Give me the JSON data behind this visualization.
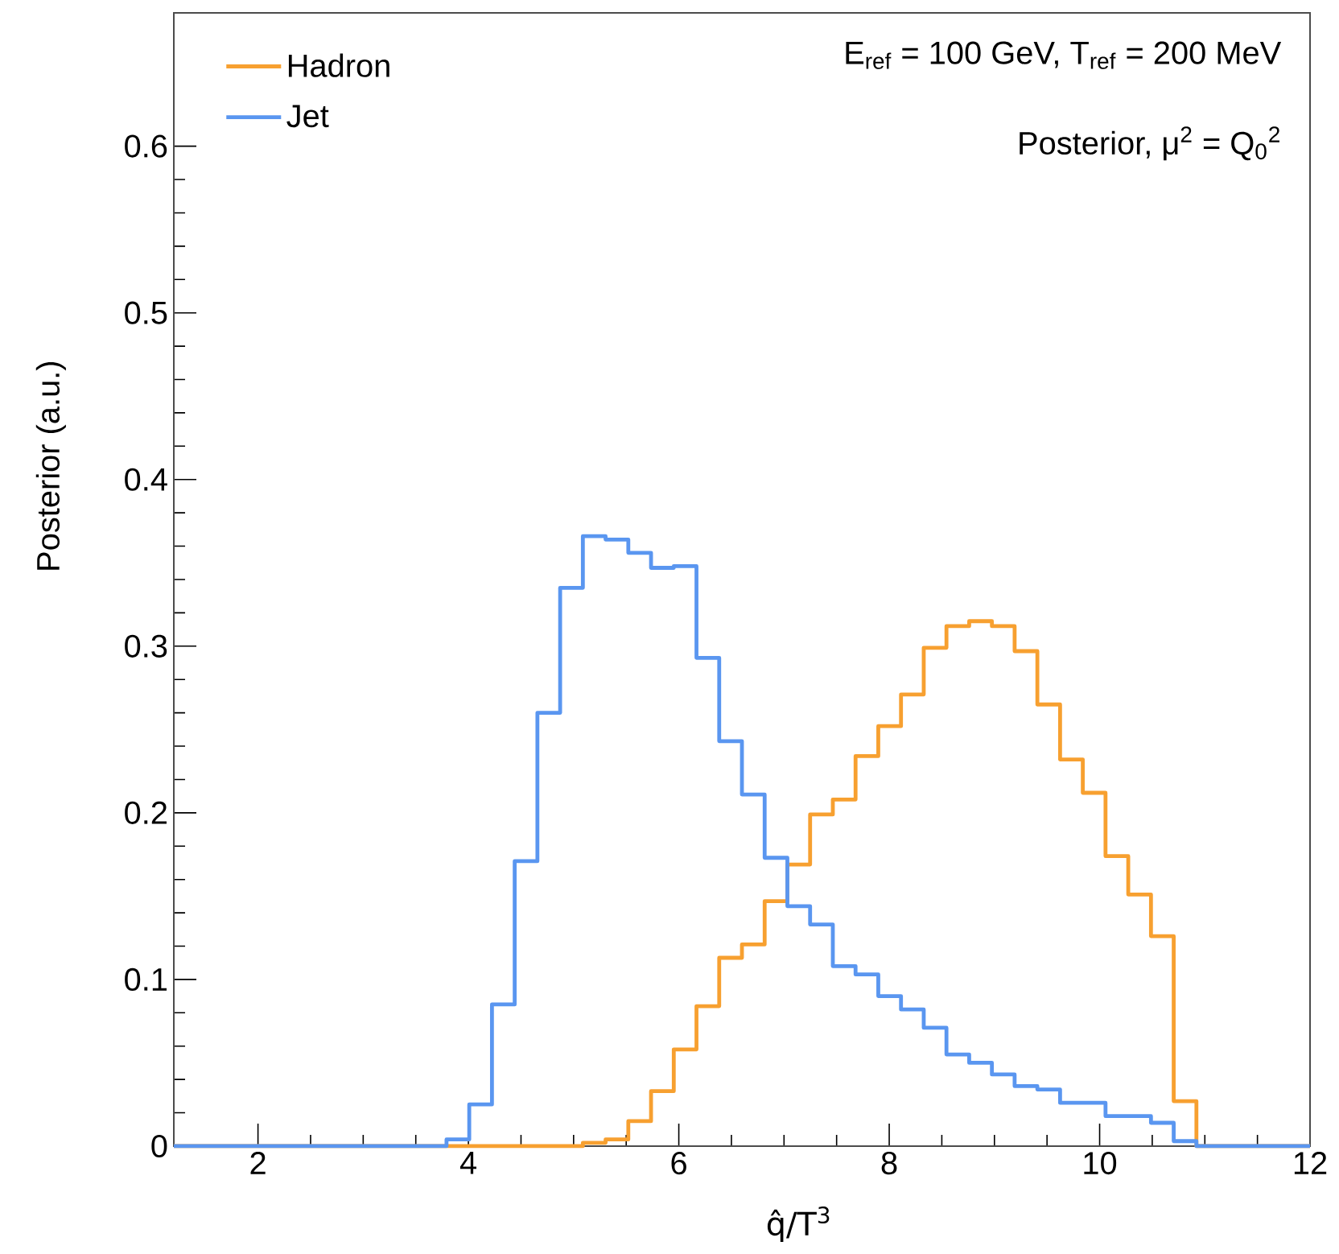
{
  "chart_data": {
    "type": "histogram",
    "xlabel": "q̂/T$^{3}$",
    "ylabel": "Posterior (a.u.)",
    "bins": [
      1.2,
      1.416,
      1.632,
      1.848,
      2.064,
      2.28,
      2.496,
      2.712,
      2.928,
      3.144,
      3.36,
      3.576,
      3.792,
      4.008,
      4.224,
      4.44,
      4.656,
      4.872,
      5.088,
      5.304,
      5.52,
      5.736,
      5.952,
      6.168,
      6.384,
      6.6,
      6.816,
      7.032,
      7.248,
      7.464,
      7.68,
      7.896,
      8.112,
      8.328,
      8.544,
      8.76,
      8.976,
      9.192,
      9.408,
      9.624,
      9.84,
      10.056,
      10.272,
      10.488,
      10.704,
      10.92,
      11.136,
      11.352,
      11.568,
      11.784,
      12.0
    ],
    "series": [
      {
        "name": "Hadron",
        "color": "#f7a030",
        "values": [
          0,
          0,
          0,
          0,
          0,
          0,
          0,
          0,
          0,
          0,
          0,
          0,
          0,
          0,
          0,
          0,
          0,
          0,
          0.002,
          0.004,
          0.015,
          0.033,
          0.058,
          0.084,
          0.113,
          0.121,
          0.147,
          0.169,
          0.199,
          0.208,
          0.234,
          0.252,
          0.271,
          0.299,
          0.312,
          0.315,
          0.312,
          0.297,
          0.265,
          0.232,
          0.212,
          0.174,
          0.151,
          0.126,
          0.027,
          0,
          0,
          0,
          0,
          0
        ]
      },
      {
        "name": "Jet",
        "color": "#5a96f0",
        "values": [
          0,
          0,
          0,
          0,
          0,
          0,
          0,
          0,
          0,
          0,
          0,
          0,
          0.004,
          0.025,
          0.085,
          0.171,
          0.26,
          0.335,
          0.366,
          0.364,
          0.356,
          0.347,
          0.348,
          0.293,
          0.243,
          0.211,
          0.173,
          0.144,
          0.133,
          0.108,
          0.103,
          0.09,
          0.082,
          0.071,
          0.055,
          0.05,
          0.043,
          0.036,
          0.034,
          0.026,
          0.026,
          0.018,
          0.018,
          0.014,
          0.003,
          0,
          0,
          0,
          0,
          0
        ]
      }
    ],
    "xlim": [
      1.2,
      12
    ],
    "ylim": [
      0,
      0.68
    ],
    "xticks": [
      2,
      4,
      6,
      8,
      10,
      12
    ],
    "yticks": [
      0,
      0.1,
      0.2,
      0.3,
      0.4,
      0.5,
      0.6
    ],
    "legend": "top left",
    "annotations": [
      "E$_{ref}$ = 100 GeV, T$_{ref}$ = 200 MeV",
      "Posterior,  μ$^{2}$ = Q$_{0}$$^{2}$"
    ]
  }
}
